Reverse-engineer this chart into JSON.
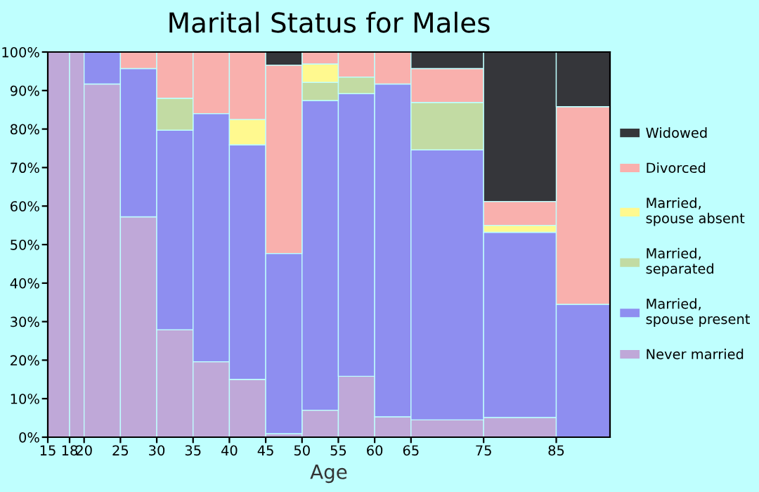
{
  "chart_data": {
    "type": "bar",
    "stacked": true,
    "title": "Marital Status for Males",
    "xlabel": "Age",
    "x": [
      16.5,
      19,
      22.5,
      27.5,
      32.5,
      37.5,
      42.5,
      47.5,
      52.5,
      57.5,
      62.5,
      70,
      80,
      88.7
    ],
    "xlim": [
      15,
      92.4
    ],
    "xticks": [
      15,
      18,
      20,
      25,
      30,
      35,
      40,
      45,
      50,
      55,
      60,
      65,
      75,
      85
    ],
    "ylim": [
      0,
      100
    ],
    "yticks": [
      {
        "value": 0,
        "label": "0%"
      },
      {
        "value": 10,
        "label": "10%"
      },
      {
        "value": 20,
        "label": "20%"
      },
      {
        "value": 30,
        "label": "30%"
      },
      {
        "value": 40,
        "label": "40%"
      },
      {
        "value": 50,
        "label": "50%"
      },
      {
        "value": 60,
        "label": "60%"
      },
      {
        "value": 70,
        "label": "70%"
      },
      {
        "value": 80,
        "label": "80%"
      },
      {
        "value": 90,
        "label": "90%"
      },
      {
        "value": 100,
        "label": "100%"
      }
    ],
    "legend": "right",
    "grid": false,
    "series": [
      {
        "name": "Never married",
        "color": "#bfa8d8",
        "values": [
          100,
          100,
          91.7,
          57.2,
          27.9,
          19.6,
          15.0,
          0.9,
          7.0,
          15.8,
          5.3,
          4.5,
          5.1,
          0
        ]
      },
      {
        "name": "Married,\nspouse present",
        "color": "#8e8ef0",
        "values": [
          0,
          0,
          8.3,
          38.5,
          51.8,
          64.4,
          60.9,
          46.8,
          80.4,
          73.4,
          86.4,
          70.1,
          48.1,
          34.5
        ]
      },
      {
        "name": "Married,\nseparated",
        "color": "#c2dba3",
        "values": [
          0,
          0,
          0,
          0,
          8.3,
          0,
          0,
          0,
          4.7,
          4.3,
          0,
          12.3,
          0,
          0
        ]
      },
      {
        "name": "Married,\nspouse absent",
        "color": "#fff98f",
        "values": [
          0,
          0,
          0,
          0,
          0,
          0,
          6.6,
          0,
          4.8,
          0,
          0,
          0,
          1.8,
          0
        ]
      },
      {
        "name": "Divorced",
        "color": "#f9b0ad",
        "values": [
          0,
          0,
          0,
          4.3,
          12.0,
          16.0,
          17.5,
          48.9,
          3.1,
          6.5,
          8.3,
          8.8,
          6.2,
          51.3
        ]
      },
      {
        "name": "Widowed",
        "color": "#35363a",
        "values": [
          0,
          0,
          0,
          0,
          0,
          0,
          0,
          3.4,
          0,
          0,
          0,
          4.3,
          38.8,
          14.2
        ]
      }
    ]
  }
}
